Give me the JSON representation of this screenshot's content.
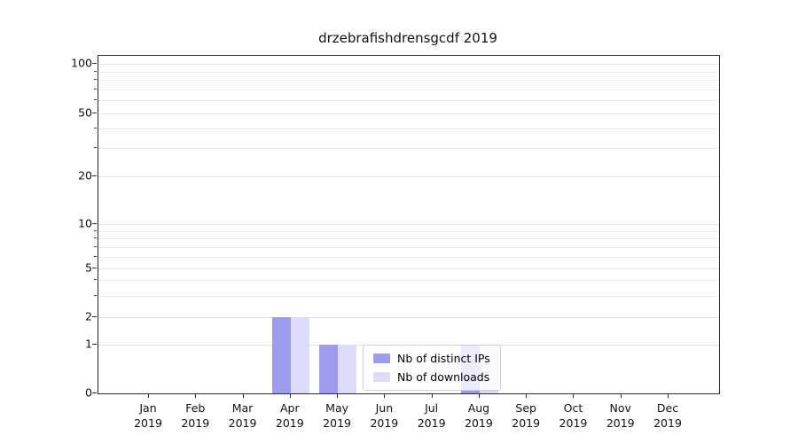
{
  "chart_data": {
    "type": "bar",
    "title": "drzebrafishdrensgcdf 2019",
    "categories": [
      "Jan",
      "Feb",
      "Mar",
      "Apr",
      "May",
      "Jun",
      "Jul",
      "Aug",
      "Sep",
      "Oct",
      "Nov",
      "Dec"
    ],
    "category_year": "2019",
    "xlabel": "",
    "ylabel": "",
    "yscale": "symlog",
    "ylim": [
      0,
      115
    ],
    "yticks": [
      0,
      1,
      2,
      5,
      10,
      20,
      50,
      100
    ],
    "minor_gridlines": [
      3,
      4,
      6,
      7,
      8,
      9,
      30,
      40,
      60,
      70,
      80,
      90
    ],
    "grid": "horizontal",
    "legend_position": "lower center inside plot",
    "series": [
      {
        "name": "Nb of distinct IPs",
        "color": "#9c9cee",
        "values": [
          0,
          0,
          0,
          2,
          1,
          0,
          0,
          1,
          0,
          0,
          0,
          0
        ]
      },
      {
        "name": "Nb of downloads",
        "color": "#dcdcf9",
        "values": [
          0,
          0,
          0,
          2,
          1,
          0,
          0,
          1,
          0,
          0,
          0,
          0
        ]
      }
    ]
  }
}
